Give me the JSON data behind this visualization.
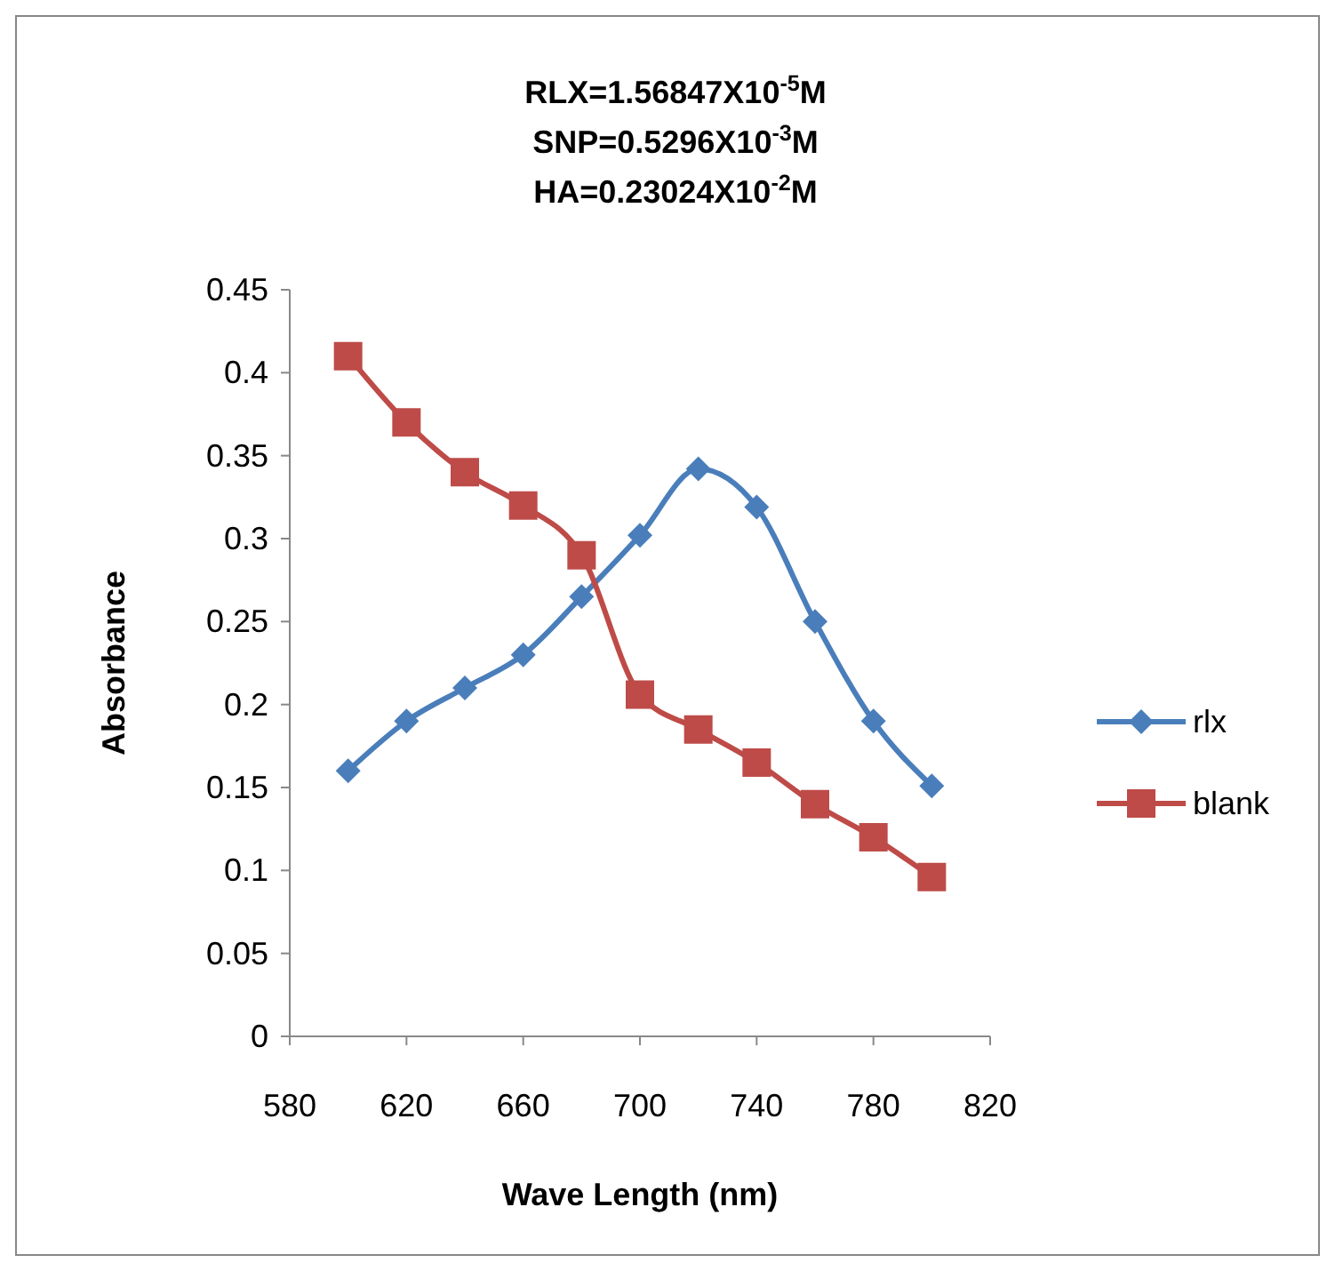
{
  "chart_data": {
    "type": "line",
    "title": "RLX=1.56847X10$^{-5}$M\nSNP=0.5296X10$^{-3}$M\nHA=0.23024X10$^{-2}$M",
    "xlabel": "Wave Length (nm)",
    "ylabel": "Absorbance",
    "x": [
      600,
      620,
      640,
      660,
      680,
      700,
      720,
      740,
      760,
      780,
      800
    ],
    "series": [
      {
        "name": "rlx",
        "color": "#4a7ebb",
        "marker": "diamond",
        "values": [
          0.16,
          0.19,
          0.21,
          0.23,
          0.265,
          0.302,
          0.342,
          0.319,
          0.25,
          0.19,
          0.151
        ]
      },
      {
        "name": "blank",
        "color": "#be4b48",
        "marker": "square",
        "values": [
          0.41,
          0.37,
          0.34,
          0.32,
          0.29,
          0.206,
          0.185,
          0.165,
          0.14,
          0.12,
          0.096
        ]
      }
    ],
    "xlim": [
      580,
      820
    ],
    "xticks": [
      580,
      620,
      660,
      700,
      740,
      780,
      820
    ],
    "ylim": [
      0,
      0.45
    ],
    "yticks": [
      0,
      0.05,
      0.1,
      0.15,
      0.2,
      0.25,
      0.3,
      0.35,
      0.4,
      0.45
    ],
    "grid": false,
    "legend": "right"
  }
}
